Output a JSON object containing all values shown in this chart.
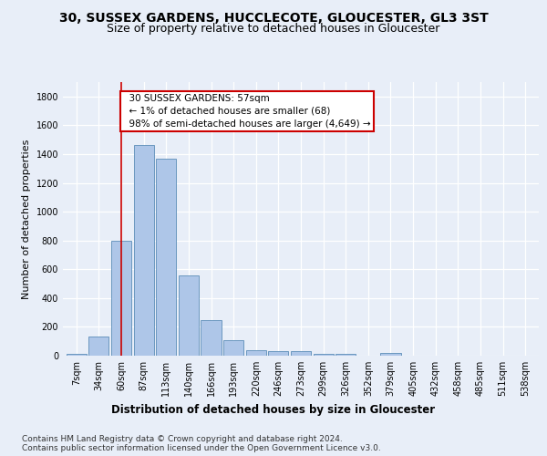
{
  "title1": "30, SUSSEX GARDENS, HUCCLECOTE, GLOUCESTER, GL3 3ST",
  "title2": "Size of property relative to detached houses in Gloucester",
  "xlabel": "Distribution of detached houses by size in Gloucester",
  "ylabel": "Number of detached properties",
  "categories": [
    "7sqm",
    "34sqm",
    "60sqm",
    "87sqm",
    "113sqm",
    "140sqm",
    "166sqm",
    "193sqm",
    "220sqm",
    "246sqm",
    "273sqm",
    "299sqm",
    "326sqm",
    "352sqm",
    "379sqm",
    "405sqm",
    "432sqm",
    "458sqm",
    "485sqm",
    "511sqm",
    "538sqm"
  ],
  "values": [
    15,
    130,
    795,
    1465,
    1370,
    560,
    250,
    110,
    35,
    30,
    30,
    15,
    15,
    0,
    20,
    0,
    0,
    0,
    0,
    0,
    0
  ],
  "bar_color": "#aec6e8",
  "bar_edge_color": "#5b8db8",
  "vline_x": 2,
  "vline_color": "#cc0000",
  "annotation_text": "  30 SUSSEX GARDENS: 57sqm\n  ← 1% of detached houses are smaller (68)\n  98% of semi-detached houses are larger (4,649) →",
  "annotation_box_color": "#ffffff",
  "annotation_box_edge_color": "#cc0000",
  "ylim": [
    0,
    1900
  ],
  "yticks": [
    0,
    200,
    400,
    600,
    800,
    1000,
    1200,
    1400,
    1600,
    1800
  ],
  "bg_color": "#e8eef8",
  "plot_bg_color": "#e8eef8",
  "footer1": "Contains HM Land Registry data © Crown copyright and database right 2024.",
  "footer2": "Contains public sector information licensed under the Open Government Licence v3.0.",
  "title1_fontsize": 10,
  "title2_fontsize": 9,
  "xlabel_fontsize": 8.5,
  "ylabel_fontsize": 8,
  "tick_fontsize": 7,
  "footer_fontsize": 6.5,
  "annot_fontsize": 7.5
}
